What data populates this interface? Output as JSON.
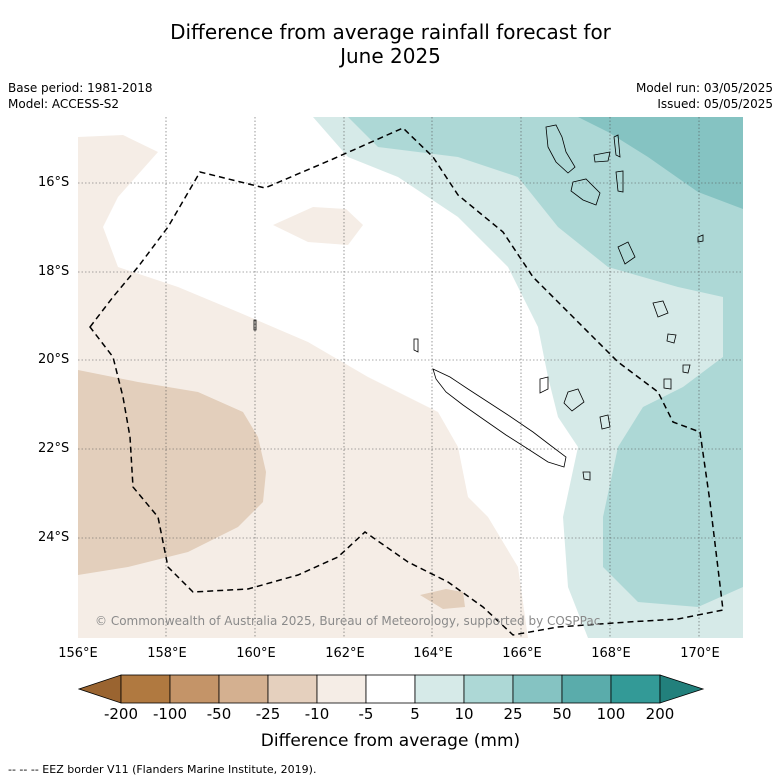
{
  "title_line1": "Difference from average rainfall forecast for",
  "title_line2": "June 2025",
  "base_period": "Base period: 1981-2018",
  "model": "Model: ACCESS-S2",
  "model_run": "Model run: 03/05/2025",
  "issued": "Issued: 05/05/2025",
  "copyright": "© Commonwealth of Australia 2025, Bureau of Meteorology, supported by COSPPac",
  "y_ticks": [
    "16°S",
    "18°S",
    "20°S",
    "22°S",
    "24°S"
  ],
  "x_ticks": [
    "156°E",
    "158°E",
    "160°E",
    "162°E",
    "164°E",
    "166°E",
    "168°E",
    "170°E"
  ],
  "colorbar": {
    "labels": [
      "-200",
      "-100",
      "-50",
      "-25",
      "-10",
      "-5",
      "5",
      "10",
      "25",
      "50",
      "100",
      "200"
    ],
    "colors": [
      "#9a6430",
      "#b07940",
      "#c49468",
      "#d4b090",
      "#e5d0be",
      "#f5ede6",
      "#ffffff",
      "#d6eae8",
      "#add8d6",
      "#85c3c2",
      "#5aacab",
      "#339a97",
      "#22807c"
    ],
    "title": "Difference from average (mm)"
  },
  "footer": "--  --  -- EEZ border V11 (Flanders Marine Institute, 2019)."
}
